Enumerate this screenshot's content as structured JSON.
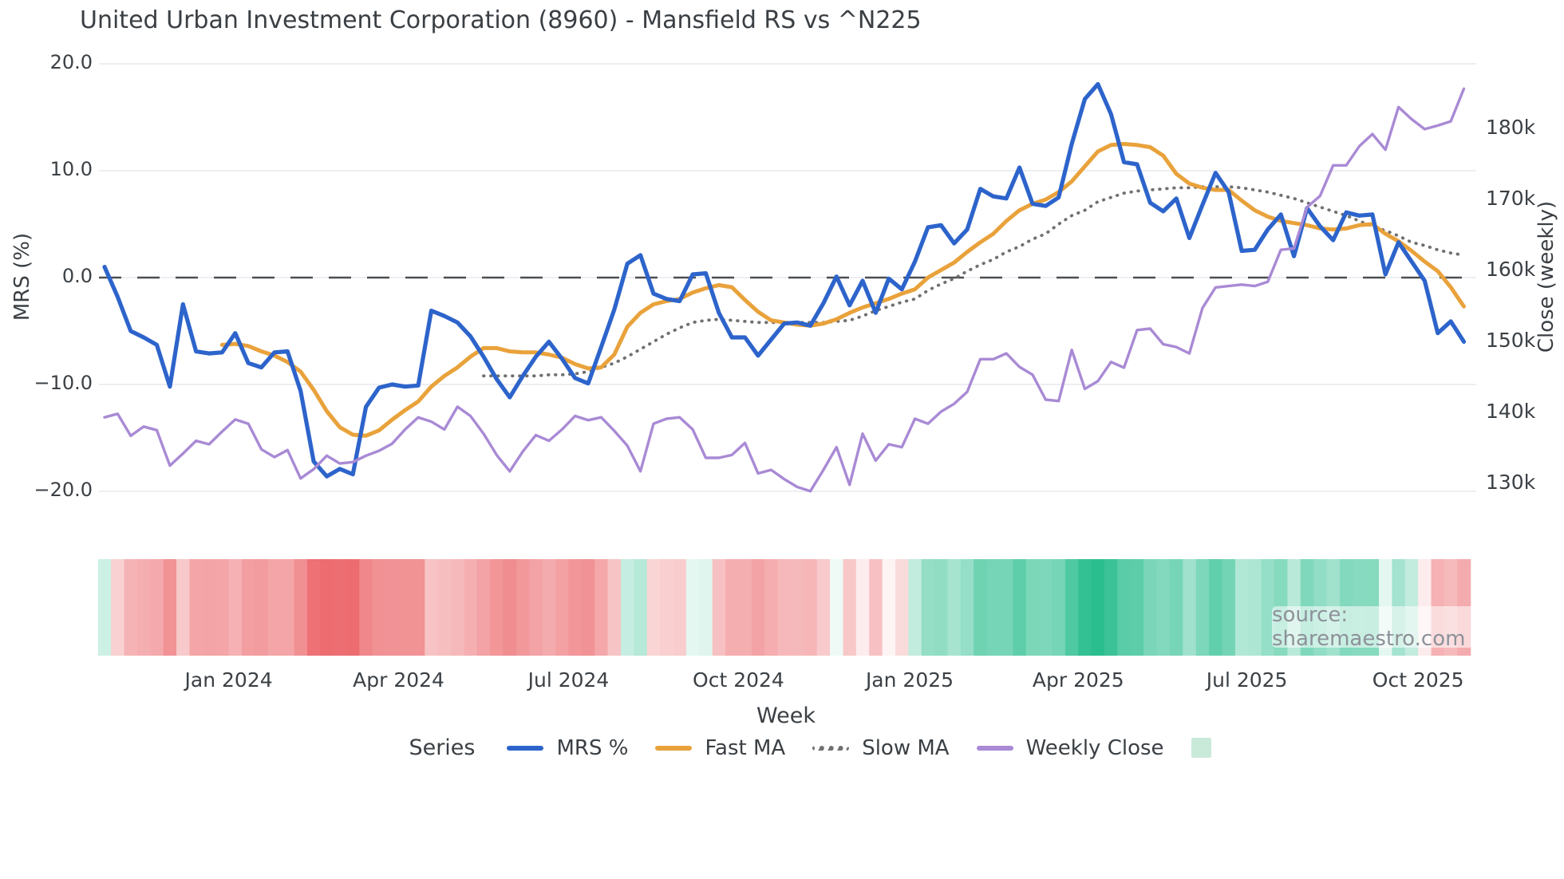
{
  "title": "United Urban Investment Corporation (8960) - Mansfield RS vs ^N225",
  "axes": {
    "left": {
      "label": "MRS (%)",
      "ticks": [
        {
          "label": "20.0",
          "value": 20
        },
        {
          "label": "10.0",
          "value": 10
        },
        {
          "label": "0.0",
          "value": 0
        },
        {
          "label": "−10.0",
          "value": -10
        },
        {
          "label": "−20.0",
          "value": -20
        }
      ]
    },
    "right": {
      "label": "Close (weekly)",
      "ticks": [
        {
          "label": "180k",
          "value": 180
        },
        {
          "label": "170k",
          "value": 170
        },
        {
          "label": "160k",
          "value": 160
        },
        {
          "label": "150k",
          "value": 150
        },
        {
          "label": "140k",
          "value": 140
        },
        {
          "label": "130k",
          "value": 130
        }
      ]
    },
    "x": {
      "label": "Week",
      "ticks": [
        {
          "label": "Jan 2024",
          "week": 9.5
        },
        {
          "label": "Apr 2024",
          "week": 22.5
        },
        {
          "label": "Jul 2024",
          "week": 35.5
        },
        {
          "label": "Oct 2024",
          "week": 48.5
        },
        {
          "label": "Jan 2025",
          "week": 61.6
        },
        {
          "label": "Apr 2025",
          "week": 74.5
        },
        {
          "label": "Jul 2025",
          "week": 87.4
        },
        {
          "label": "Oct 2025",
          "week": 100.5
        }
      ]
    }
  },
  "legend": {
    "heading": "Series",
    "entries": [
      {
        "label": "MRS %",
        "swatch": "solid",
        "color": "#2d64cb"
      },
      {
        "label": "Fast MA",
        "swatch": "solid",
        "color": "#e9a23b"
      },
      {
        "label": "Slow MA",
        "swatch": "dotted",
        "color": "#707070"
      },
      {
        "label": "Weekly Close",
        "swatch": "solid",
        "color": "#a98ad5"
      }
    ],
    "background_swatch_color": "#c9ead9"
  },
  "source": "source: sharemaestro.com",
  "chart_data": {
    "type": "line",
    "x_unit": "week",
    "n_points": 105,
    "left_axis": {
      "label": "MRS (%)",
      "range": [
        -22,
        22
      ]
    },
    "right_axis": {
      "label": "Close (weekly)",
      "range_k": [
        126,
        188
      ]
    },
    "zero_line": {
      "value": 0,
      "style": "dashed",
      "color": "#4c4f52"
    },
    "grid": {
      "color": "#edeef2",
      "at_left_values": [
        20,
        10,
        0,
        -10,
        -20
      ]
    },
    "series": [
      {
        "name": "MRS %",
        "axis": "left",
        "color": "#2d64cb",
        "width": 5.2,
        "style": "solid",
        "values": [
          1.0,
          -1.8,
          -5.0,
          -5.6,
          -6.3,
          -10.2,
          -2.5,
          -6.9,
          -7.1,
          -7.0,
          -5.2,
          -8.0,
          -8.4,
          -7.0,
          -6.9,
          -10.6,
          -17.2,
          -18.6,
          -17.9,
          -18.4,
          -12.1,
          -10.3,
          -10.0,
          -10.2,
          -10.1,
          -3.1,
          -3.6,
          -4.2,
          -5.5,
          -7.4,
          -9.5,
          -11.2,
          -9.2,
          -7.4,
          -6.0,
          -7.6,
          -9.4,
          -9.9,
          -6.5,
          -3.0,
          1.3,
          2.1,
          -1.5,
          -2.0,
          -2.2,
          0.3,
          0.4,
          -3.3,
          -5.6,
          -5.6,
          -7.3,
          -5.8,
          -4.3,
          -4.2,
          -4.5,
          -2.4,
          0.1,
          -2.6,
          -0.3,
          -3.3,
          -0.1,
          -1.1,
          1.5,
          4.7,
          4.9,
          3.2,
          4.5,
          8.3,
          7.6,
          7.4,
          10.3,
          6.9,
          6.7,
          7.5,
          12.5,
          16.7,
          18.1,
          15.3,
          10.8,
          10.6,
          7.0,
          6.2,
          7.4,
          3.7,
          6.8,
          9.8,
          8.0,
          2.5,
          2.6,
          4.5,
          5.9,
          2.0,
          6.5,
          4.8,
          3.5,
          6.1,
          5.8,
          5.9,
          0.3,
          3.3,
          1.5,
          -0.3,
          -5.2,
          -4.1,
          -6.0
        ]
      },
      {
        "name": "Fast MA",
        "axis": "left",
        "color": "#e9a23b",
        "width": 5,
        "style": "solid",
        "values": [
          null,
          null,
          null,
          null,
          null,
          null,
          null,
          null,
          null,
          -6.3,
          -6.2,
          -6.4,
          -6.9,
          -7.3,
          -7.9,
          -8.8,
          -10.5,
          -12.5,
          -14.0,
          -14.7,
          -14.8,
          -14.3,
          -13.3,
          -12.4,
          -11.6,
          -10.2,
          -9.2,
          -8.4,
          -7.4,
          -6.6,
          -6.6,
          -6.9,
          -7.0,
          -7.0,
          -7.2,
          -7.5,
          -8.1,
          -8.5,
          -8.4,
          -7.2,
          -4.6,
          -3.3,
          -2.5,
          -2.2,
          -2.0,
          -1.4,
          -1.0,
          -0.7,
          -0.9,
          -2.1,
          -3.2,
          -4.0,
          -4.2,
          -4.4,
          -4.5,
          -4.3,
          -3.9,
          -3.3,
          -2.8,
          -2.4,
          -2.0,
          -1.5,
          -1.1,
          0.0,
          0.7,
          1.4,
          2.4,
          3.3,
          4.1,
          5.3,
          6.3,
          6.9,
          7.3,
          8.0,
          9.0,
          10.4,
          11.8,
          12.4,
          12.5,
          12.4,
          12.2,
          11.4,
          9.7,
          8.8,
          8.4,
          8.2,
          8.2,
          7.2,
          6.3,
          5.7,
          5.3,
          5.1,
          4.9,
          4.6,
          4.5,
          4.6,
          4.9,
          5.0,
          4.1,
          3.4,
          2.5,
          1.5,
          0.6,
          -0.9,
          -2.7
        ]
      },
      {
        "name": "Slow MA",
        "axis": "left",
        "color": "#707070",
        "width": 3.8,
        "style": "dotted",
        "values": [
          null,
          null,
          null,
          null,
          null,
          null,
          null,
          null,
          null,
          null,
          null,
          null,
          null,
          null,
          null,
          null,
          null,
          null,
          null,
          null,
          null,
          null,
          null,
          null,
          null,
          null,
          null,
          null,
          null,
          -9.2,
          -9.2,
          -9.2,
          -9.2,
          -9.2,
          -9.1,
          -9.1,
          -9.0,
          -8.8,
          -8.4,
          -8.0,
          -7.4,
          -6.7,
          -6.0,
          -5.3,
          -4.7,
          -4.2,
          -4.0,
          -3.9,
          -4.0,
          -4.1,
          -4.2,
          -4.2,
          -4.2,
          -4.2,
          -4.2,
          -4.2,
          -4.1,
          -4.0,
          -3.6,
          -3.1,
          -2.7,
          -2.3,
          -2.0,
          -1.2,
          -0.6,
          -0.1,
          0.6,
          1.2,
          1.7,
          2.4,
          2.9,
          3.6,
          4.1,
          5.0,
          5.8,
          6.3,
          7.1,
          7.5,
          7.9,
          8.1,
          8.2,
          8.3,
          8.4,
          8.4,
          8.5,
          8.5,
          8.5,
          8.4,
          8.2,
          8.0,
          7.7,
          7.4,
          7.0,
          6.6,
          6.2,
          5.8,
          5.3,
          4.8,
          4.4,
          3.9,
          3.3,
          3.0,
          2.6,
          2.3,
          2.1
        ]
      },
      {
        "name": "Weekly Close",
        "axis": "right",
        "color": "#a98ad5",
        "width": 3.4,
        "style": "solid",
        "values": [
          139.3,
          139.8,
          136.7,
          138.0,
          137.5,
          132.5,
          134.2,
          136.0,
          135.5,
          137.3,
          139.0,
          138.4,
          134.8,
          133.7,
          134.7,
          130.7,
          132.0,
          133.9,
          132.8,
          133.0,
          133.9,
          134.6,
          135.6,
          137.6,
          139.3,
          138.7,
          137.6,
          140.8,
          139.5,
          137.0,
          134.0,
          131.7,
          134.5,
          136.8,
          136.0,
          137.6,
          139.5,
          138.9,
          139.3,
          137.4,
          135.3,
          131.7,
          138.4,
          139.1,
          139.3,
          137.6,
          133.6,
          133.6,
          134.0,
          135.7,
          131.4,
          131.9,
          130.6,
          129.5,
          128.9,
          131.9,
          135.1,
          129.8,
          137.0,
          133.2,
          135.5,
          135.1,
          139.1,
          138.4,
          140.1,
          141.2,
          142.9,
          147.5,
          147.5,
          148.3,
          146.4,
          145.3,
          141.8,
          141.6,
          148.8,
          143.3,
          144.4,
          147.1,
          146.3,
          151.6,
          151.8,
          149.6,
          149.2,
          148.3,
          154.7,
          157.6,
          157.8,
          158.0,
          157.8,
          158.4,
          162.9,
          163.1,
          168.9,
          170.5,
          174.8,
          174.8,
          177.5,
          179.2,
          177.0,
          183.0,
          181.3,
          179.9,
          180.4,
          181.0,
          185.6
        ]
      }
    ],
    "heatmap": {
      "source_series": "MRS %",
      "position": "below_plot",
      "negative_color": "#ec6a6e",
      "positive_color": "#25bc8b",
      "neutral_color": "#ffffff",
      "scale_abs_max": 19
    }
  }
}
